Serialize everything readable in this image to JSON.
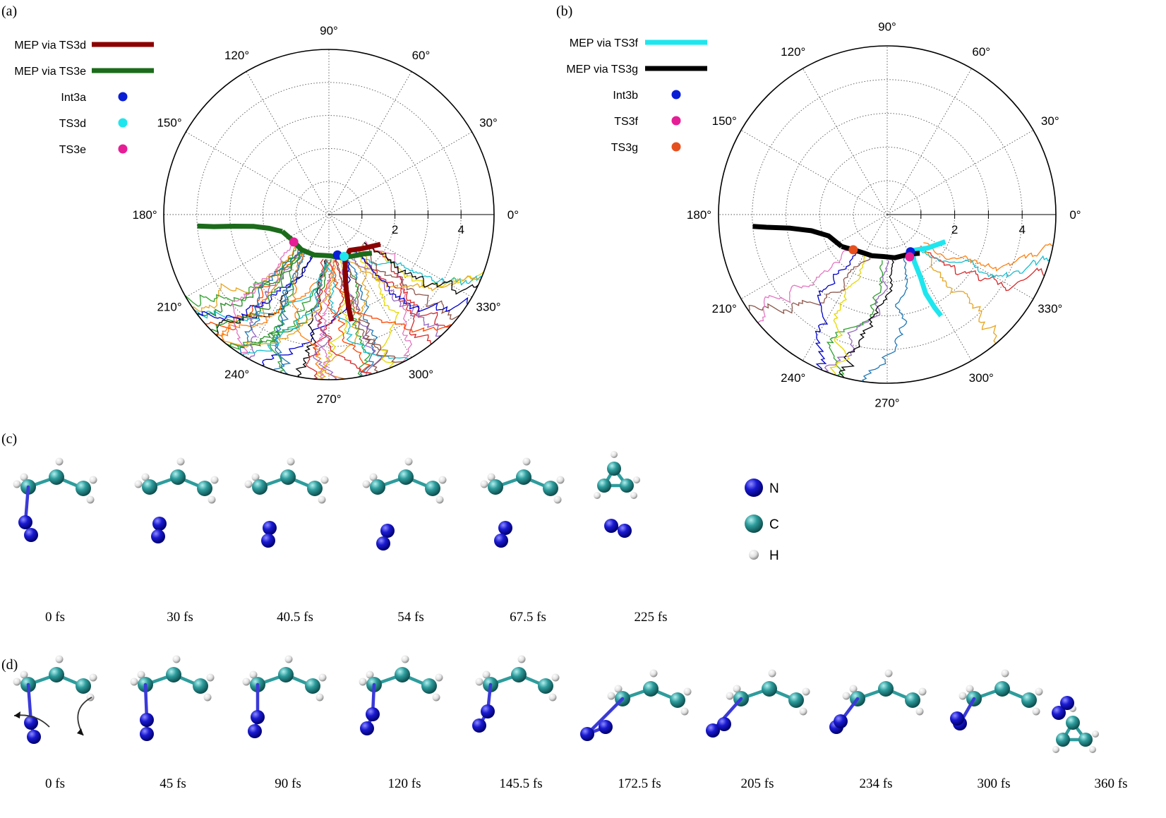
{
  "panels": {
    "a_label": "(a)",
    "b_label": "(b)",
    "c_label": "(c)",
    "d_label": "(d)"
  },
  "chart_data": [
    {
      "type": "line",
      "coordinate_system": "polar",
      "panel": "(a)",
      "angle_ticks": [
        "0°",
        "30°",
        "60°",
        "90°",
        "120°",
        "150°",
        "180°",
        "210°",
        "240°",
        "270°",
        "300°",
        "330°"
      ],
      "radial_ticks": [
        "2",
        "4"
      ],
      "rlim": [
        0,
        5
      ],
      "grid": true,
      "legend_position": "top-left",
      "legend": [
        {
          "label": "MEP via TS3d",
          "kind": "line",
          "color": "#8b0000"
        },
        {
          "label": "MEP via TS3e",
          "kind": "line",
          "color": "#1b6b1b"
        },
        {
          "label": "Int3a",
          "kind": "point",
          "color": "#0a1ed6"
        },
        {
          "label": "TS3d",
          "kind": "point",
          "color": "#1ee6ee"
        },
        {
          "label": "TS3e",
          "kind": "point",
          "color": "#e61e96"
        }
      ],
      "mep": [
        {
          "name": "MEP via TS3d",
          "color": "#8b0000",
          "points": [
            [
              330,
              1.8
            ],
            [
              315,
              1.45
            ],
            [
              300,
              1.25
            ],
            [
              290,
              1.45
            ],
            [
              285,
              1.9
            ],
            [
              283,
              2.35
            ],
            [
              282,
              2.85
            ],
            [
              282,
              3.3
            ]
          ]
        },
        {
          "name": "MEP via TS3e",
          "color": "#1b6b1b",
          "points": [
            [
              200,
              1.5
            ],
            [
              215,
              1.35
            ],
            [
              232,
              1.35
            ],
            [
              250,
              1.3
            ],
            [
              262,
              1.25
            ],
            [
              272,
              1.25
            ],
            [
              285,
              1.35
            ],
            [
              300,
              1.45
            ],
            [
              312,
              1.6
            ],
            [
              318,
              1.75
            ]
          ]
        },
        {
          "name": "MEP via TS3e",
          "color": "#1b6b1b",
          "points": [
            [
              200,
              1.5
            ],
            [
              193,
              1.85
            ],
            [
              189,
              2.3
            ],
            [
              187,
              2.9
            ],
            [
              186,
              3.5
            ],
            [
              185,
              4.0
            ]
          ]
        }
      ],
      "markers": [
        {
          "name": "Int3a",
          "color": "#0a1ed6",
          "point": [
            282,
            1.25
          ]
        },
        {
          "name": "TS3d",
          "color": "#1ee6ee",
          "point": [
            290,
            1.35
          ]
        },
        {
          "name": "TS3e",
          "color": "#e61e96",
          "point": [
            218,
            1.35
          ]
        }
      ],
      "trajectories_note_colors": [
        "#1f77b4",
        "#d62728",
        "#2ca02c",
        "#9467bd",
        "#e6a520",
        "#17becf",
        "#000000",
        "#ff7f0e",
        "#e6d800",
        "#8c564b",
        "#e377c2",
        "#0000cc",
        "#ff4500",
        "#228b22"
      ]
    },
    {
      "type": "line",
      "coordinate_system": "polar",
      "panel": "(b)",
      "angle_ticks": [
        "0°",
        "30°",
        "60°",
        "90°",
        "120°",
        "150°",
        "180°",
        "210°",
        "240°",
        "270°",
        "300°",
        "330°"
      ],
      "radial_ticks": [
        "2",
        "4"
      ],
      "rlim": [
        0,
        5
      ],
      "grid": true,
      "legend_position": "top-left",
      "legend": [
        {
          "label": "MEP via TS3f",
          "kind": "line",
          "color": "#1ee6ee"
        },
        {
          "label": "MEP via TS3g",
          "kind": "line",
          "color": "#000000"
        },
        {
          "label": "Int3b",
          "kind": "point",
          "color": "#0a1ed6"
        },
        {
          "label": "TS3f",
          "kind": "point",
          "color": "#e61e96"
        },
        {
          "label": "TS3g",
          "kind": "point",
          "color": "#e6501e"
        }
      ],
      "mep": [
        {
          "name": "MEP via TS3f",
          "color": "#1ee6ee",
          "points": [
            [
              335,
              1.9
            ],
            [
              320,
              1.55
            ],
            [
              305,
              1.3
            ],
            [
              300,
              1.6
            ],
            [
              298,
              2.1
            ],
            [
              296,
              2.6
            ],
            [
              297,
              3.1
            ],
            [
              298,
              3.4
            ]
          ]
        },
        {
          "name": "MEP via TS3g",
          "color": "#000000",
          "points": [
            [
              215,
              1.65
            ],
            [
              230,
              1.4
            ],
            [
              250,
              1.3
            ],
            [
              265,
              1.25
            ],
            [
              280,
              1.3
            ],
            [
              300,
              1.35
            ],
            [
              310,
              1.5
            ]
          ]
        },
        {
          "name": "MEP via TS3g",
          "color": "#000000",
          "points": [
            [
              215,
              1.65
            ],
            [
              200,
              1.85
            ],
            [
              192,
              2.3
            ],
            [
              188,
              2.9
            ],
            [
              186,
              3.6
            ],
            [
              185,
              4.0
            ]
          ]
        }
      ],
      "markers": [
        {
          "name": "Int3b",
          "color": "#0a1ed6",
          "point": [
            302,
            1.3
          ]
        },
        {
          "name": "TS3f",
          "color": "#e61e96",
          "point": [
            298,
            1.42
          ]
        },
        {
          "name": "TS3g",
          "color": "#e6501e",
          "point": [
            226,
            1.45
          ]
        }
      ]
    }
  ],
  "panel_c": {
    "frames": [
      "0 fs",
      "30 fs",
      "40.5 fs",
      "54 fs",
      "67.5 fs",
      "225 fs"
    ],
    "legend": [
      {
        "label": "N",
        "color": "#1414c8"
      },
      {
        "label": "C",
        "color": "#2a9a9a"
      },
      {
        "label": "H",
        "color": "#e6e6e6"
      }
    ]
  },
  "panel_d": {
    "frames": [
      "0 fs",
      "45 fs",
      "90 fs",
      "120 fs",
      "145.5 fs",
      "172.5 fs",
      "205 fs",
      "234 fs",
      "300 fs",
      "360 fs"
    ]
  }
}
